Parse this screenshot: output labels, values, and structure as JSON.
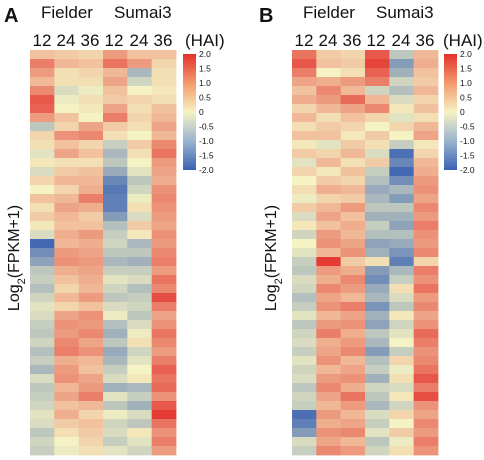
{
  "chart_data": [
    {
      "type": "heatmap",
      "panel_label": "A",
      "group_labels": [
        "Fielder",
        "Sumai3"
      ],
      "columns": [
        "12",
        "24",
        "36",
        "12",
        "24",
        "36"
      ],
      "x_unit": "(HAI)",
      "ylabel": "Log2(FPKM+1)",
      "colorbar_ticks": [
        "2.0",
        "1.5",
        "1.0",
        "0.5",
        "0",
        "-0.5",
        "-1.0",
        "-1.5",
        "-2.0"
      ],
      "color_range": [
        -2.0,
        2.0
      ],
      "palette": [
        "#3a62b3",
        "#f5f2c3",
        "#e3312c"
      ],
      "values": [
        [
          0.5,
          0.4,
          0.3,
          0.9,
          0.5,
          0.5
        ],
        [
          1.2,
          0.6,
          0.5,
          1.3,
          0.9,
          0.3
        ],
        [
          0.9,
          0.2,
          0.3,
          0.6,
          -0.8,
          0.2
        ],
        [
          0.6,
          0.2,
          0.2,
          0.8,
          -0.4,
          0.2
        ],
        [
          1.1,
          -0.3,
          -0.1,
          0.5,
          0.0,
          0.1
        ],
        [
          1.6,
          -0.1,
          0.2,
          0.4,
          0.3,
          0.2
        ],
        [
          1.5,
          0.0,
          0.1,
          0.8,
          0.2,
          0.5
        ],
        [
          0.9,
          0.5,
          0.0,
          1.2,
          0.3,
          0.6
        ],
        [
          -0.6,
          0.3,
          0.8,
          0.4,
          0.2,
          0.8
        ],
        [
          0.3,
          1.0,
          1.1,
          0.2,
          0.0,
          0.6
        ],
        [
          0.2,
          0.5,
          0.3,
          -0.5,
          0.4,
          1.1
        ],
        [
          -0.2,
          0.8,
          0.5,
          -0.8,
          0.2,
          1.3
        ],
        [
          0.1,
          0.2,
          0.2,
          -0.6,
          0.0,
          0.9
        ],
        [
          -0.3,
          0.4,
          0.5,
          -1.0,
          -0.2,
          0.8
        ],
        [
          0.3,
          0.6,
          0.6,
          -1.5,
          -0.6,
          0.7
        ],
        [
          0.0,
          0.3,
          0.7,
          -1.7,
          -0.4,
          1.0
        ],
        [
          0.5,
          0.6,
          1.2,
          -1.6,
          -0.1,
          1.1
        ],
        [
          0.2,
          0.8,
          0.7,
          -1.6,
          0.2,
          1.0
        ],
        [
          0.4,
          0.6,
          0.4,
          -1.2,
          -0.3,
          0.9
        ],
        [
          0.1,
          0.5,
          0.5,
          -0.7,
          0.4,
          0.8
        ],
        [
          -0.3,
          0.7,
          0.9,
          -0.5,
          0.1,
          1.0
        ],
        [
          -1.9,
          0.6,
          0.7,
          -0.4,
          -0.8,
          0.9
        ],
        [
          -1.4,
          0.9,
          0.8,
          -0.6,
          -0.6,
          1.1
        ],
        [
          -1.1,
          1.0,
          0.9,
          -0.8,
          -0.9,
          1.2
        ],
        [
          -0.6,
          0.7,
          0.8,
          -0.5,
          -0.5,
          0.9
        ],
        [
          -0.5,
          0.5,
          0.7,
          -0.2,
          -0.3,
          1.3
        ],
        [
          -0.7,
          0.3,
          0.6,
          -0.4,
          -0.7,
          1.1
        ],
        [
          -0.4,
          0.6,
          0.9,
          -0.6,
          -0.5,
          1.7
        ],
        [
          -0.2,
          0.3,
          0.5,
          -0.3,
          -0.4,
          1.2
        ],
        [
          -0.3,
          0.8,
          1.0,
          -0.1,
          -0.6,
          0.8
        ],
        [
          -0.5,
          1.0,
          0.9,
          -0.7,
          -0.3,
          1.0
        ],
        [
          -0.6,
          0.9,
          1.1,
          -0.9,
          -0.1,
          1.3
        ],
        [
          -0.4,
          1.1,
          0.8,
          -0.6,
          0.2,
          1.1
        ],
        [
          -0.7,
          1.2,
          1.0,
          -1.0,
          -0.4,
          0.9
        ],
        [
          -0.5,
          0.7,
          0.6,
          -0.8,
          -0.2,
          1.2
        ],
        [
          -0.8,
          0.9,
          0.5,
          -0.5,
          0.0,
          1.5
        ],
        [
          -0.3,
          1.0,
          0.8,
          -0.3,
          0.1,
          1.3
        ],
        [
          -0.6,
          0.6,
          0.9,
          -0.9,
          -0.8,
          1.4
        ],
        [
          -0.5,
          0.8,
          1.2,
          -0.2,
          -0.5,
          1.0
        ],
        [
          -0.4,
          0.5,
          0.6,
          -0.6,
          -0.9,
          1.6
        ],
        [
          -0.2,
          0.7,
          0.3,
          -0.1,
          -0.3,
          1.9
        ],
        [
          -0.3,
          0.4,
          0.5,
          -0.4,
          -0.6,
          1.3
        ],
        [
          -0.6,
          0.2,
          0.4,
          -0.3,
          0.1,
          1.0
        ],
        [
          -0.4,
          0.0,
          0.3,
          -0.5,
          -0.2,
          1.2
        ],
        [
          -0.5,
          -0.1,
          0.2,
          -0.2,
          -0.4,
          0.9
        ]
      ]
    },
    {
      "type": "heatmap",
      "panel_label": "B",
      "group_labels": [
        "Fielder",
        "Sumai3"
      ],
      "columns": [
        "12",
        "24",
        "36",
        "12",
        "24",
        "36"
      ],
      "x_unit": "(HAI)",
      "ylabel": "Log2(FPKM+1)",
      "colorbar_ticks": [
        "2.0",
        "1.5",
        "1.0",
        "0.5",
        "0",
        "-0.5",
        "-1.0",
        "-1.5",
        "-2.0"
      ],
      "color_range": [
        -2.0,
        2.0
      ],
      "palette": [
        "#3a62b3",
        "#f5f2c3",
        "#e3312c"
      ],
      "values": [
        [
          1.3,
          0.4,
          0.3,
          1.6,
          -0.6,
          0.6
        ],
        [
          1.6,
          0.5,
          0.4,
          1.8,
          -1.2,
          0.7
        ],
        [
          1.2,
          0.0,
          0.2,
          1.5,
          -0.9,
          0.5
        ],
        [
          0.8,
          0.7,
          0.9,
          1.2,
          -0.4,
          0.4
        ],
        [
          0.5,
          1.1,
          0.6,
          -0.4,
          -0.7,
          0.6
        ],
        [
          0.7,
          0.9,
          1.4,
          0.6,
          -0.3,
          0.3
        ],
        [
          0.3,
          0.6,
          0.8,
          1.1,
          0.1,
          0.5
        ],
        [
          0.6,
          0.2,
          0.5,
          0.3,
          -0.2,
          0.2
        ],
        [
          0.2,
          0.4,
          0.3,
          0.0,
          0.3,
          0.6
        ],
        [
          0.5,
          0.5,
          0.1,
          0.4,
          0.0,
          0.8
        ],
        [
          0.1,
          -0.2,
          0.4,
          0.2,
          -0.5,
          0.1
        ],
        [
          0.4,
          0.3,
          0.6,
          -0.3,
          -1.8,
          0.3
        ],
        [
          -0.2,
          0.6,
          0.2,
          0.4,
          -1.5,
          0.6
        ],
        [
          0.3,
          0.1,
          0.5,
          -0.5,
          -1.9,
          0.7
        ],
        [
          0.0,
          0.4,
          0.3,
          -0.7,
          -1.4,
          0.9
        ],
        [
          0.2,
          0.7,
          0.6,
          -1.0,
          -0.8,
          1.0
        ],
        [
          -0.1,
          0.3,
          0.4,
          -0.8,
          -1.2,
          0.8
        ],
        [
          0.4,
          0.6,
          0.9,
          -0.6,
          -0.6,
          1.1
        ],
        [
          -0.3,
          0.8,
          0.5,
          -0.9,
          -0.9,
          0.9
        ],
        [
          0.1,
          0.5,
          0.7,
          -0.5,
          -1.1,
          1.2
        ],
        [
          -0.4,
          0.9,
          0.6,
          -0.7,
          -0.7,
          1.0
        ],
        [
          0.0,
          1.0,
          0.8,
          -1.1,
          -1.0,
          0.9
        ],
        [
          -0.2,
          0.6,
          1.0,
          -0.9,
          -1.3,
          1.1
        ],
        [
          -0.5,
          1.9,
          0.4,
          0.2,
          -1.6,
          0.3
        ],
        [
          -0.6,
          0.9,
          0.7,
          -1.2,
          -0.8,
          1.2
        ],
        [
          -0.3,
          0.7,
          1.1,
          -1.4,
          -0.5,
          1.0
        ],
        [
          -0.4,
          1.1,
          0.9,
          -1.0,
          0.2,
          1.3
        ],
        [
          -0.7,
          0.8,
          0.6,
          -0.8,
          -0.3,
          0.9
        ],
        [
          -0.5,
          1.0,
          1.2,
          -1.3,
          -0.6,
          1.1
        ],
        [
          -0.2,
          0.6,
          0.8,
          -0.9,
          0.1,
          0.8
        ],
        [
          -0.6,
          0.9,
          1.0,
          -1.1,
          -0.4,
          1.0
        ],
        [
          -0.4,
          1.2,
          0.7,
          -0.6,
          -0.2,
          1.4
        ],
        [
          -0.3,
          0.7,
          0.9,
          -0.8,
          0.0,
          1.2
        ],
        [
          -0.5,
          0.8,
          1.1,
          -1.2,
          -0.5,
          1.0
        ],
        [
          -0.2,
          1.0,
          0.6,
          -0.7,
          0.3,
          1.1
        ],
        [
          -0.4,
          0.6,
          0.8,
          -0.5,
          -0.1,
          1.3
        ],
        [
          -0.3,
          0.9,
          1.0,
          -0.9,
          0.2,
          1.6
        ],
        [
          -0.6,
          1.1,
          0.7,
          -0.4,
          -0.3,
          1.2
        ],
        [
          -0.4,
          0.8,
          1.3,
          -0.6,
          0.1,
          1.7
        ],
        [
          -0.5,
          0.6,
          0.9,
          -0.8,
          -0.4,
          1.0
        ],
        [
          -1.8,
          0.9,
          0.6,
          -0.3,
          0.3,
          0.8
        ],
        [
          -1.6,
          0.7,
          0.8,
          -0.5,
          0.0,
          1.1
        ],
        [
          -1.2,
          1.0,
          1.1,
          -0.2,
          0.4,
          0.9
        ],
        [
          -0.3,
          0.8,
          0.6,
          -0.6,
          -0.1,
          1.2
        ],
        [
          -0.5,
          1.1,
          0.9,
          -0.4,
          0.2,
          1.0
        ]
      ]
    }
  ]
}
